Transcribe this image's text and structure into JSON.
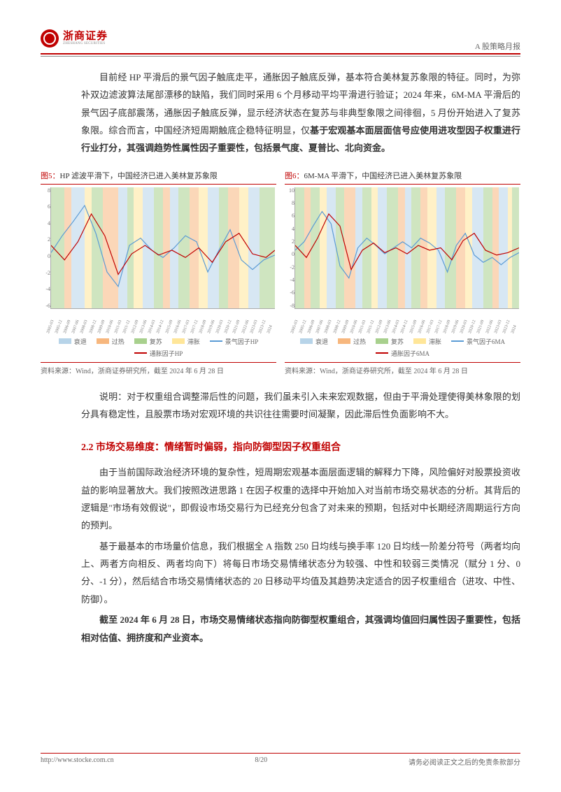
{
  "header": {
    "logo_cn": "浙商证券",
    "logo_en": "ZHESHANG SECURITIES",
    "right": "A 股策略月报"
  },
  "body": {
    "p1": "目前经 HP 平滑后的景气因子触底走平，通胀因子触底反弹，基本符合美林复苏象限的特征。同时，为弥补双边滤波算法尾部漂移的缺陷，我们同时采用 6 个月移动平均平滑进行验证；2024 年来，6M-MA 平滑后的景气因子底部震荡，通胀因子触底反弹，显示经济状态在复苏与非典型象限之间徘徊，5 月份开始进入了复苏象限。综合而言，中国经济短周期触底企稳特征明显，仅",
    "p1_bold": "基于宏观基本面层面信号应使用进攻型因子权重进行行业打分，其强调趋势性属性因子重要性，包括景气度、夏普比、北向资金。",
    "note": "说明：对于权重组合调整滞后性的问题，我们虽未引入未来宏观数据，但由于平滑处理使得美林象限的划分具有稳定性，且股票市场对宏观环境的共识往往需要时间凝聚，因此滞后性负面影响不大。",
    "h2": "2.2 市场交易维度：情绪暂时偏弱，指向防御型因子权重组合",
    "p3": "由于当前国际政治经济环境的复杂性，短周期宏观基本面层面逻辑的解释力下降，风险偏好对股票投资收益的影响显著放大。我们按照改进思路 1 在因子权重的选择中开始加入对当前市场交易状态的分析。其背后的逻辑是\"市场有效假说\"，即假设市场交易行为已经充分包含了对未来的预期，包括对中长期经济周期运行方向的预判。",
    "p4": "基于最基本的市场量价信息，我们根据全 A 指数 250 日均线与换手率 120 日均线一阶差分符号（两者均向上、两者方向相反、两者均向下）将每日市场交易情绪状态分为较强、中性和较弱三类情况（赋分 1 分、0 分、-1 分），然后结合市场交易情绪状态的 20 日移动平均值及其趋势决定适合的因子权重组合（进攻、中性、防御）。",
    "p5_bold": "截至 2024 年 6 月 28 日，市场交易情绪状态指向防御型权重组合，其强调均值回归属性因子重要性，包括相对估值、拥挤度和产业资本。"
  },
  "chart5": {
    "fignum": "图5：",
    "title": "HP 滤波平滑下，中国经济已进入美林复苏象限",
    "source": "资料来源：Wind，浙商证券研究所，截至 2024 年 6 月 28 日",
    "yticks": [
      "8",
      "6",
      "4",
      "2",
      "0",
      "-2",
      "-4",
      "-6"
    ],
    "xticks": [
      "2005-03",
      "2005-12",
      "2006-09",
      "2007-06",
      "2008-03",
      "2008-12",
      "2009-09",
      "2010-06",
      "2011-03",
      "2011-12",
      "2012-09",
      "2013-06",
      "2014-03",
      "2014-12",
      "2015-09",
      "2016-06",
      "2017-03",
      "2017-12",
      "2018-09",
      "2019-06",
      "2020-03",
      "2020-12",
      "2021-09",
      "2022-06",
      "2023-03",
      "2023-12",
      "2024"
    ],
    "legend_boxes": [
      {
        "label": "衰退",
        "color": "#b7d4e9"
      },
      {
        "label": "过热",
        "color": "#f7b77e"
      },
      {
        "label": "复苏",
        "color": "#a8d08d"
      },
      {
        "label": "滞胀",
        "color": "#ffe699"
      }
    ],
    "legend_lines": [
      {
        "label": "景气因子HP",
        "color": "#5b9bd5"
      },
      {
        "label": "通胀因子HP",
        "color": "#c00000"
      }
    ],
    "colors": {
      "recession": "#b7d4e9",
      "overheat": "#f7b77e",
      "recovery": "#a8d08d",
      "stagflation": "#ffe699"
    },
    "bands": [
      {
        "x": 0,
        "w": 6,
        "c": "recovery"
      },
      {
        "x": 6,
        "w": 3,
        "c": "overheat"
      },
      {
        "x": 9,
        "w": 6,
        "c": "recession"
      },
      {
        "x": 15,
        "w": 3,
        "c": "stagflation"
      },
      {
        "x": 18,
        "w": 5,
        "c": "recovery"
      },
      {
        "x": 23,
        "w": 7,
        "c": "overheat"
      },
      {
        "x": 30,
        "w": 4,
        "c": "recession"
      },
      {
        "x": 34,
        "w": 3,
        "c": "recovery"
      },
      {
        "x": 37,
        "w": 4,
        "c": "stagflation"
      },
      {
        "x": 41,
        "w": 5,
        "c": "recession"
      },
      {
        "x": 46,
        "w": 4,
        "c": "recovery"
      },
      {
        "x": 50,
        "w": 3,
        "c": "overheat"
      },
      {
        "x": 53,
        "w": 4,
        "c": "recession"
      },
      {
        "x": 57,
        "w": 5,
        "c": "recovery"
      },
      {
        "x": 62,
        "w": 4,
        "c": "overheat"
      },
      {
        "x": 66,
        "w": 4,
        "c": "stagflation"
      },
      {
        "x": 70,
        "w": 5,
        "c": "recession"
      },
      {
        "x": 75,
        "w": 4,
        "c": "recovery"
      },
      {
        "x": 79,
        "w": 5,
        "c": "overheat"
      },
      {
        "x": 84,
        "w": 4,
        "c": "stagflation"
      },
      {
        "x": 88,
        "w": 5,
        "c": "recession"
      },
      {
        "x": 93,
        "w": 4,
        "c": "recovery"
      },
      {
        "x": 97,
        "w": 3,
        "c": "recovery"
      }
    ],
    "line_blue": [
      [
        0,
        46
      ],
      [
        5,
        60
      ],
      [
        10,
        72
      ],
      [
        15,
        85
      ],
      [
        20,
        62
      ],
      [
        25,
        30
      ],
      [
        30,
        18
      ],
      [
        35,
        52
      ],
      [
        40,
        58
      ],
      [
        45,
        48
      ],
      [
        50,
        42
      ],
      [
        55,
        50
      ],
      [
        60,
        60
      ],
      [
        65,
        55
      ],
      [
        70,
        30
      ],
      [
        75,
        48
      ],
      [
        80,
        65
      ],
      [
        85,
        40
      ],
      [
        90,
        32
      ],
      [
        95,
        40
      ],
      [
        100,
        44
      ]
    ],
    "line_red": [
      [
        0,
        52
      ],
      [
        6,
        40
      ],
      [
        12,
        55
      ],
      [
        18,
        78
      ],
      [
        24,
        60
      ],
      [
        30,
        28
      ],
      [
        36,
        45
      ],
      [
        42,
        52
      ],
      [
        48,
        44
      ],
      [
        54,
        48
      ],
      [
        60,
        42
      ],
      [
        66,
        50
      ],
      [
        72,
        38
      ],
      [
        78,
        55
      ],
      [
        84,
        62
      ],
      [
        90,
        45
      ],
      [
        96,
        42
      ],
      [
        100,
        48
      ]
    ]
  },
  "chart6": {
    "fignum": "图6：",
    "title": "6M-MA 平滑下，中国经济已进入美林复苏象限",
    "source": "资料来源：Wind，浙商证券研究所，截至 2024 年 6 月 28 日",
    "yticks": [
      "10",
      "8",
      "6",
      "4",
      "2",
      "0",
      "-2",
      "-4",
      "-6",
      "-8"
    ],
    "xticks": [
      "2005-03",
      "2005-12",
      "2006-09",
      "2007-06",
      "2008-03",
      "2008-12",
      "2009-09",
      "2010-06",
      "2011-03",
      "2011-12",
      "2012-09",
      "2013-06",
      "2014-03",
      "2014-12",
      "2015-09",
      "2016-06",
      "2017-03",
      "2017-12",
      "2018-09",
      "2019-06",
      "2020-03",
      "2020-12",
      "2021-09",
      "2022-06",
      "2023-03",
      "2023-12",
      "2024"
    ],
    "legend_boxes": [
      {
        "label": "衰退",
        "color": "#b7d4e9"
      },
      {
        "label": "过热",
        "color": "#f7b77e"
      },
      {
        "label": "复苏",
        "color": "#a8d08d"
      },
      {
        "label": "滞胀",
        "color": "#ffe699"
      }
    ],
    "legend_lines": [
      {
        "label": "景气因子6MA",
        "color": "#5b9bd5"
      },
      {
        "label": "通胀因子6MA",
        "color": "#c00000"
      }
    ],
    "bands": [
      {
        "x": 0,
        "w": 4,
        "c": "recovery"
      },
      {
        "x": 4,
        "w": 3,
        "c": "overheat"
      },
      {
        "x": 7,
        "w": 4,
        "c": "recovery"
      },
      {
        "x": 11,
        "w": 3,
        "c": "stagflation"
      },
      {
        "x": 14,
        "w": 4,
        "c": "recession"
      },
      {
        "x": 18,
        "w": 4,
        "c": "recovery"
      },
      {
        "x": 22,
        "w": 5,
        "c": "overheat"
      },
      {
        "x": 27,
        "w": 3,
        "c": "recession"
      },
      {
        "x": 30,
        "w": 4,
        "c": "recovery"
      },
      {
        "x": 34,
        "w": 3,
        "c": "stagflation"
      },
      {
        "x": 37,
        "w": 4,
        "c": "recession"
      },
      {
        "x": 41,
        "w": 5,
        "c": "recovery"
      },
      {
        "x": 46,
        "w": 3,
        "c": "overheat"
      },
      {
        "x": 49,
        "w": 3,
        "c": "recession"
      },
      {
        "x": 52,
        "w": 4,
        "c": "recovery"
      },
      {
        "x": 56,
        "w": 3,
        "c": "overheat"
      },
      {
        "x": 59,
        "w": 4,
        "c": "stagflation"
      },
      {
        "x": 63,
        "w": 4,
        "c": "recession"
      },
      {
        "x": 67,
        "w": 5,
        "c": "recovery"
      },
      {
        "x": 72,
        "w": 4,
        "c": "overheat"
      },
      {
        "x": 76,
        "w": 3,
        "c": "stagflation"
      },
      {
        "x": 79,
        "w": 5,
        "c": "recession"
      },
      {
        "x": 84,
        "w": 4,
        "c": "recovery"
      },
      {
        "x": 88,
        "w": 3,
        "c": "overheat"
      },
      {
        "x": 91,
        "w": 4,
        "c": "recession"
      },
      {
        "x": 95,
        "w": 2,
        "c": "stagflation"
      },
      {
        "x": 97,
        "w": 3,
        "c": "recovery"
      }
    ],
    "line_blue": [
      [
        0,
        48
      ],
      [
        4,
        55
      ],
      [
        8,
        68
      ],
      [
        12,
        80
      ],
      [
        16,
        70
      ],
      [
        20,
        35
      ],
      [
        24,
        25
      ],
      [
        28,
        50
      ],
      [
        32,
        58
      ],
      [
        36,
        52
      ],
      [
        40,
        45
      ],
      [
        44,
        50
      ],
      [
        48,
        55
      ],
      [
        52,
        50
      ],
      [
        56,
        58
      ],
      [
        60,
        54
      ],
      [
        64,
        48
      ],
      [
        68,
        30
      ],
      [
        72,
        52
      ],
      [
        76,
        62
      ],
      [
        80,
        44
      ],
      [
        84,
        38
      ],
      [
        88,
        42
      ],
      [
        92,
        36
      ],
      [
        96,
        42
      ],
      [
        100,
        46
      ]
    ],
    "line_red": [
      [
        0,
        52
      ],
      [
        5,
        42
      ],
      [
        10,
        58
      ],
      [
        15,
        78
      ],
      [
        20,
        68
      ],
      [
        25,
        32
      ],
      [
        30,
        48
      ],
      [
        35,
        54
      ],
      [
        40,
        46
      ],
      [
        45,
        50
      ],
      [
        50,
        45
      ],
      [
        55,
        52
      ],
      [
        60,
        48
      ],
      [
        65,
        50
      ],
      [
        70,
        40
      ],
      [
        75,
        56
      ],
      [
        80,
        62
      ],
      [
        85,
        48
      ],
      [
        90,
        44
      ],
      [
        95,
        46
      ],
      [
        100,
        50
      ]
    ]
  },
  "footer": {
    "left": "http://www.stocke.com.cn",
    "center": "8/20",
    "right": "请务必阅读正文之后的免责条款部分"
  }
}
